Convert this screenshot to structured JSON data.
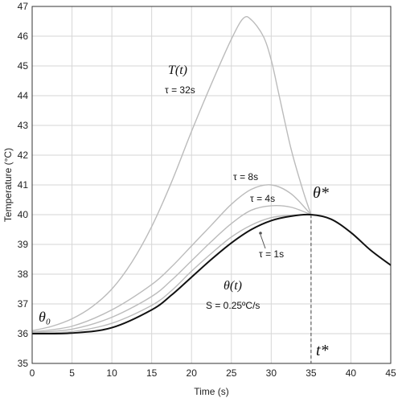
{
  "chart_data": {
    "type": "line",
    "xlabel": "Time (s)",
    "ylabel": "Temperature (°C)",
    "xlim": [
      0,
      45
    ],
    "ylim": [
      35,
      47
    ],
    "xticks": [
      0,
      5,
      10,
      15,
      20,
      25,
      30,
      35,
      40,
      45
    ],
    "yticks": [
      35,
      36,
      37,
      38,
      39,
      40,
      41,
      42,
      43,
      44,
      45,
      46,
      47
    ],
    "grid": true,
    "series": [
      {
        "name": "θ(t)",
        "color": "#111111",
        "x": [
          0,
          5,
          10,
          15,
          17.5,
          20,
          22.5,
          25,
          27.5,
          30,
          32.5,
          35,
          37.5,
          40,
          42.5,
          45
        ],
        "y": [
          36.0,
          36.02,
          36.2,
          36.8,
          37.3,
          37.9,
          38.5,
          39.05,
          39.5,
          39.8,
          39.95,
          40.0,
          39.85,
          39.4,
          38.8,
          38.3
        ]
      },
      {
        "name": "τ = 1s",
        "color": "#bbbbbb",
        "x": [
          0,
          5,
          10,
          15,
          17.5,
          20,
          22.5,
          25,
          27.5,
          30,
          32.5,
          35
        ],
        "y": [
          36.02,
          36.07,
          36.35,
          36.95,
          37.45,
          38.1,
          38.7,
          39.25,
          39.65,
          39.9,
          39.98,
          40.0
        ]
      },
      {
        "name": "τ = 4s",
        "color": "#bbbbbb",
        "x": [
          0,
          5,
          10,
          15,
          17.5,
          20,
          22.5,
          25,
          27.5,
          30,
          32.5,
          35
        ],
        "y": [
          36.04,
          36.15,
          36.55,
          37.25,
          37.8,
          38.45,
          39.1,
          39.7,
          40.15,
          40.3,
          40.25,
          40.0
        ]
      },
      {
        "name": "τ = 8s",
        "color": "#bbbbbb",
        "x": [
          0,
          5,
          10,
          15,
          17.5,
          20,
          22.5,
          25,
          27.5,
          30,
          32.5,
          35
        ],
        "y": [
          36.06,
          36.25,
          36.8,
          37.65,
          38.25,
          38.95,
          39.65,
          40.35,
          40.85,
          41.0,
          40.7,
          40.0
        ]
      },
      {
        "name": "T(t) τ = 32s",
        "color": "#bbbbbb",
        "x": [
          0,
          2.5,
          5,
          7.5,
          10,
          12.5,
          15,
          17.5,
          20,
          22.5,
          25,
          26.5,
          27.5,
          29,
          30,
          31,
          32.5,
          34,
          35
        ],
        "y": [
          36.1,
          36.25,
          36.5,
          36.9,
          37.5,
          38.4,
          39.6,
          41.1,
          42.8,
          44.4,
          45.9,
          46.6,
          46.55,
          46.0,
          45.2,
          44.0,
          42.2,
          40.8,
          40.0
        ]
      }
    ],
    "annotations": {
      "theta0": "θ₀",
      "theta_star": "θ*",
      "t_star": "t*",
      "theta_t": "θ(t)",
      "rate": "S = 0.25ºC/s",
      "T_t": "T(t)",
      "tau32": "τ = 32s",
      "tau8": "τ = 8s",
      "tau4": "τ = 4s",
      "tau1": "τ = 1s"
    },
    "peak_marker": {
      "x": 35,
      "y": 40
    }
  }
}
